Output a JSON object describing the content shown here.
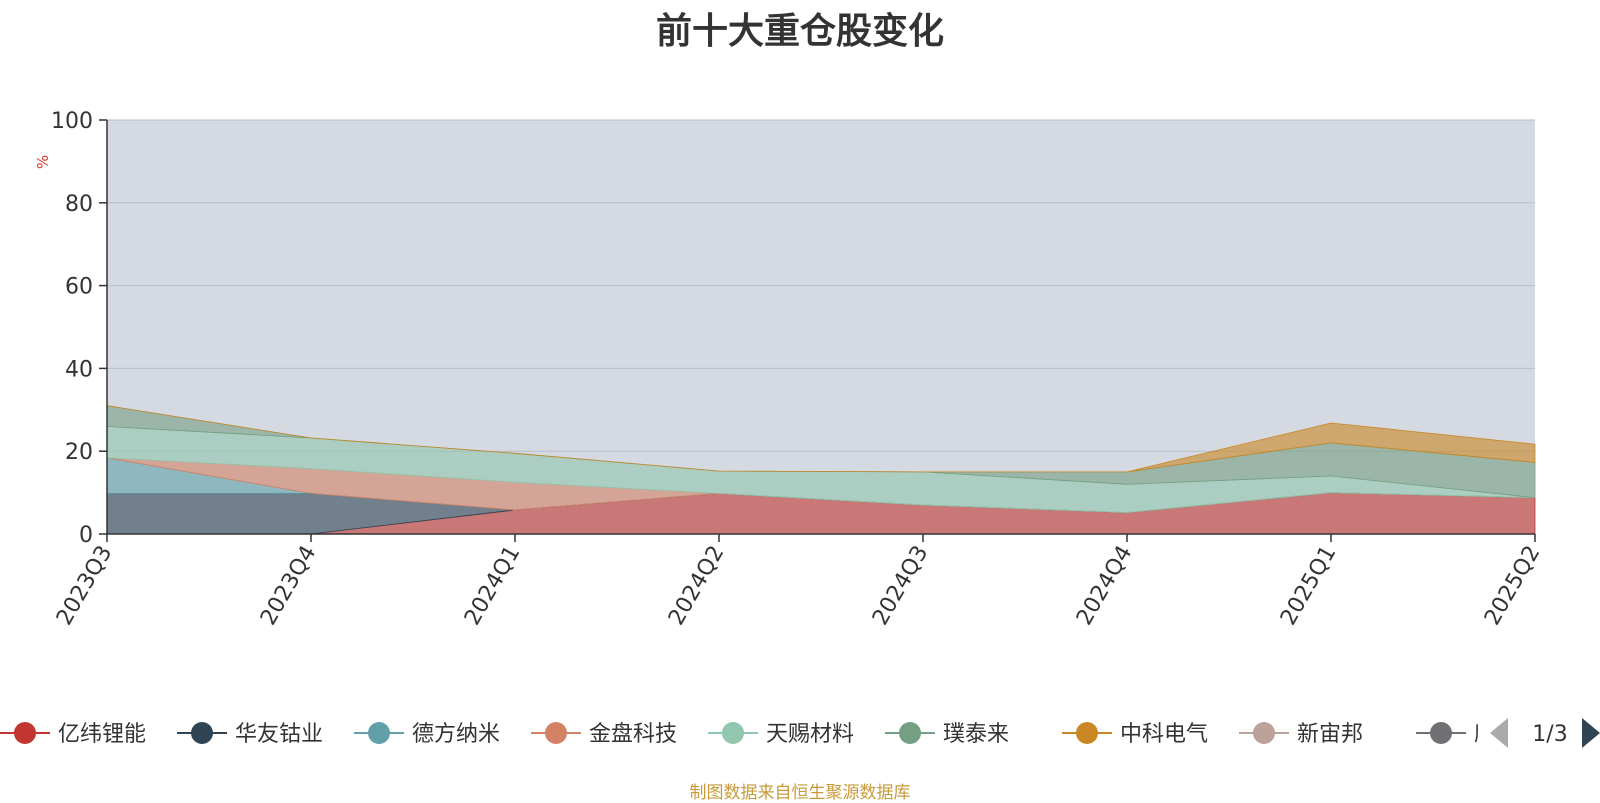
{
  "chart_data": {
    "type": "area",
    "title": "前十大重仓股变化",
    "ylabel": "%",
    "ylim": [
      0,
      100
    ],
    "yticks": [
      0,
      20,
      40,
      60,
      80,
      100
    ],
    "categories": [
      "2023Q3",
      "2023Q4",
      "2024Q1",
      "2024Q2",
      "2024Q3",
      "2024Q4",
      "2025Q1",
      "2025Q2"
    ],
    "stacked": true,
    "grid": true,
    "legend_position": "bottom",
    "series": [
      {
        "name": "亿纬锂能",
        "color": "#c23531",
        "values": [
          0,
          0,
          5.8,
          9.8,
          7.0,
          5.2,
          10.0,
          8.8
        ]
      },
      {
        "name": "华友钴业",
        "color": "#2f4554",
        "values": [
          9.8,
          9.8,
          0,
          0,
          0,
          0,
          0,
          0
        ]
      },
      {
        "name": "德方纳米",
        "color": "#61a0a8",
        "values": [
          8.6,
          0,
          0,
          0,
          0,
          0,
          0,
          0
        ]
      },
      {
        "name": "金盘科技",
        "color": "#d48265",
        "values": [
          0,
          6.0,
          6.7,
          0,
          0,
          0,
          0,
          0
        ]
      },
      {
        "name": "天赐材料",
        "color": "#91c7ae",
        "values": [
          7.6,
          7.4,
          7.0,
          5.4,
          8.0,
          6.8,
          4.0,
          0
        ]
      },
      {
        "name": "璞泰来",
        "color": "#749f83",
        "values": [
          5.0,
          0,
          0,
          0,
          0,
          3.0,
          8.0,
          8.5
        ]
      },
      {
        "name": "中科电气",
        "color": "#ca8622",
        "values": [
          0,
          0,
          0,
          0,
          0,
          0,
          4.8,
          4.4
        ]
      }
    ],
    "legend": [
      {
        "name": "亿纬锂能",
        "color": "#c23531"
      },
      {
        "name": "华友钴业",
        "color": "#2f4554"
      },
      {
        "name": "德方纳米",
        "color": "#61a0a8"
      },
      {
        "name": "金盘科技",
        "color": "#d48265"
      },
      {
        "name": "天赐材料",
        "color": "#91c7ae"
      },
      {
        "name": "璞泰来",
        "color": "#749f83"
      },
      {
        "name": "中科电气",
        "color": "#ca8622"
      },
      {
        "name": "新宙邦",
        "color": "#bda29a"
      },
      {
        "name": "欣旺达",
        "color": "#6e7074"
      }
    ],
    "legend_page": "1/3",
    "source_note": "制图数据来自恒生聚源数据库"
  }
}
